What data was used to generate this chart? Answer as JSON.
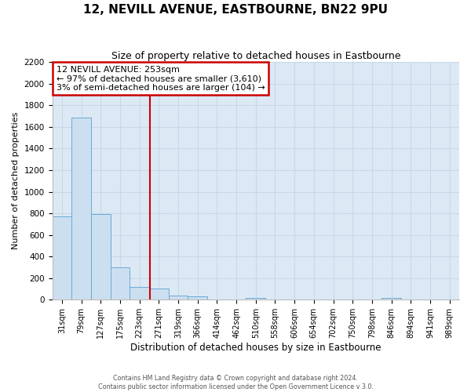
{
  "title": "12, NEVILL AVENUE, EASTBOURNE, BN22 9PU",
  "subtitle": "Size of property relative to detached houses in Eastbourne",
  "xlabel": "Distribution of detached houses by size in Eastbourne",
  "ylabel": "Number of detached properties",
  "bar_labels": [
    "31sqm",
    "79sqm",
    "127sqm",
    "175sqm",
    "223sqm",
    "271sqm",
    "319sqm",
    "366sqm",
    "414sqm",
    "462sqm",
    "510sqm",
    "558sqm",
    "606sqm",
    "654sqm",
    "702sqm",
    "750sqm",
    "798sqm",
    "846sqm",
    "894sqm",
    "941sqm",
    "989sqm"
  ],
  "bar_values": [
    775,
    1685,
    795,
    300,
    115,
    105,
    40,
    30,
    0,
    0,
    20,
    0,
    0,
    0,
    0,
    0,
    0,
    20,
    0,
    0,
    0
  ],
  "bar_color": "#ccdff0",
  "bar_edge_color": "#6aaad4",
  "ylim": [
    0,
    2200
  ],
  "yticks": [
    0,
    200,
    400,
    600,
    800,
    1000,
    1200,
    1400,
    1600,
    1800,
    2000,
    2200
  ],
  "property_line_x": 4.55,
  "property_line_color": "#cc0000",
  "annotation_title": "12 NEVILL AVENUE: 253sqm",
  "annotation_line1": "← 97% of detached houses are smaller (3,610)",
  "annotation_line2": "3% of semi-detached houses are larger (104) →",
  "annotation_box_color": "#ffffff",
  "annotation_box_edge": "#cc0000",
  "grid_color": "#c8d8e8",
  "plot_bg_color": "#dce9f5",
  "fig_bg_color": "#ffffff",
  "footer1": "Contains HM Land Registry data © Crown copyright and database right 2024.",
  "footer2": "Contains public sector information licensed under the Open Government Licence v 3.0."
}
